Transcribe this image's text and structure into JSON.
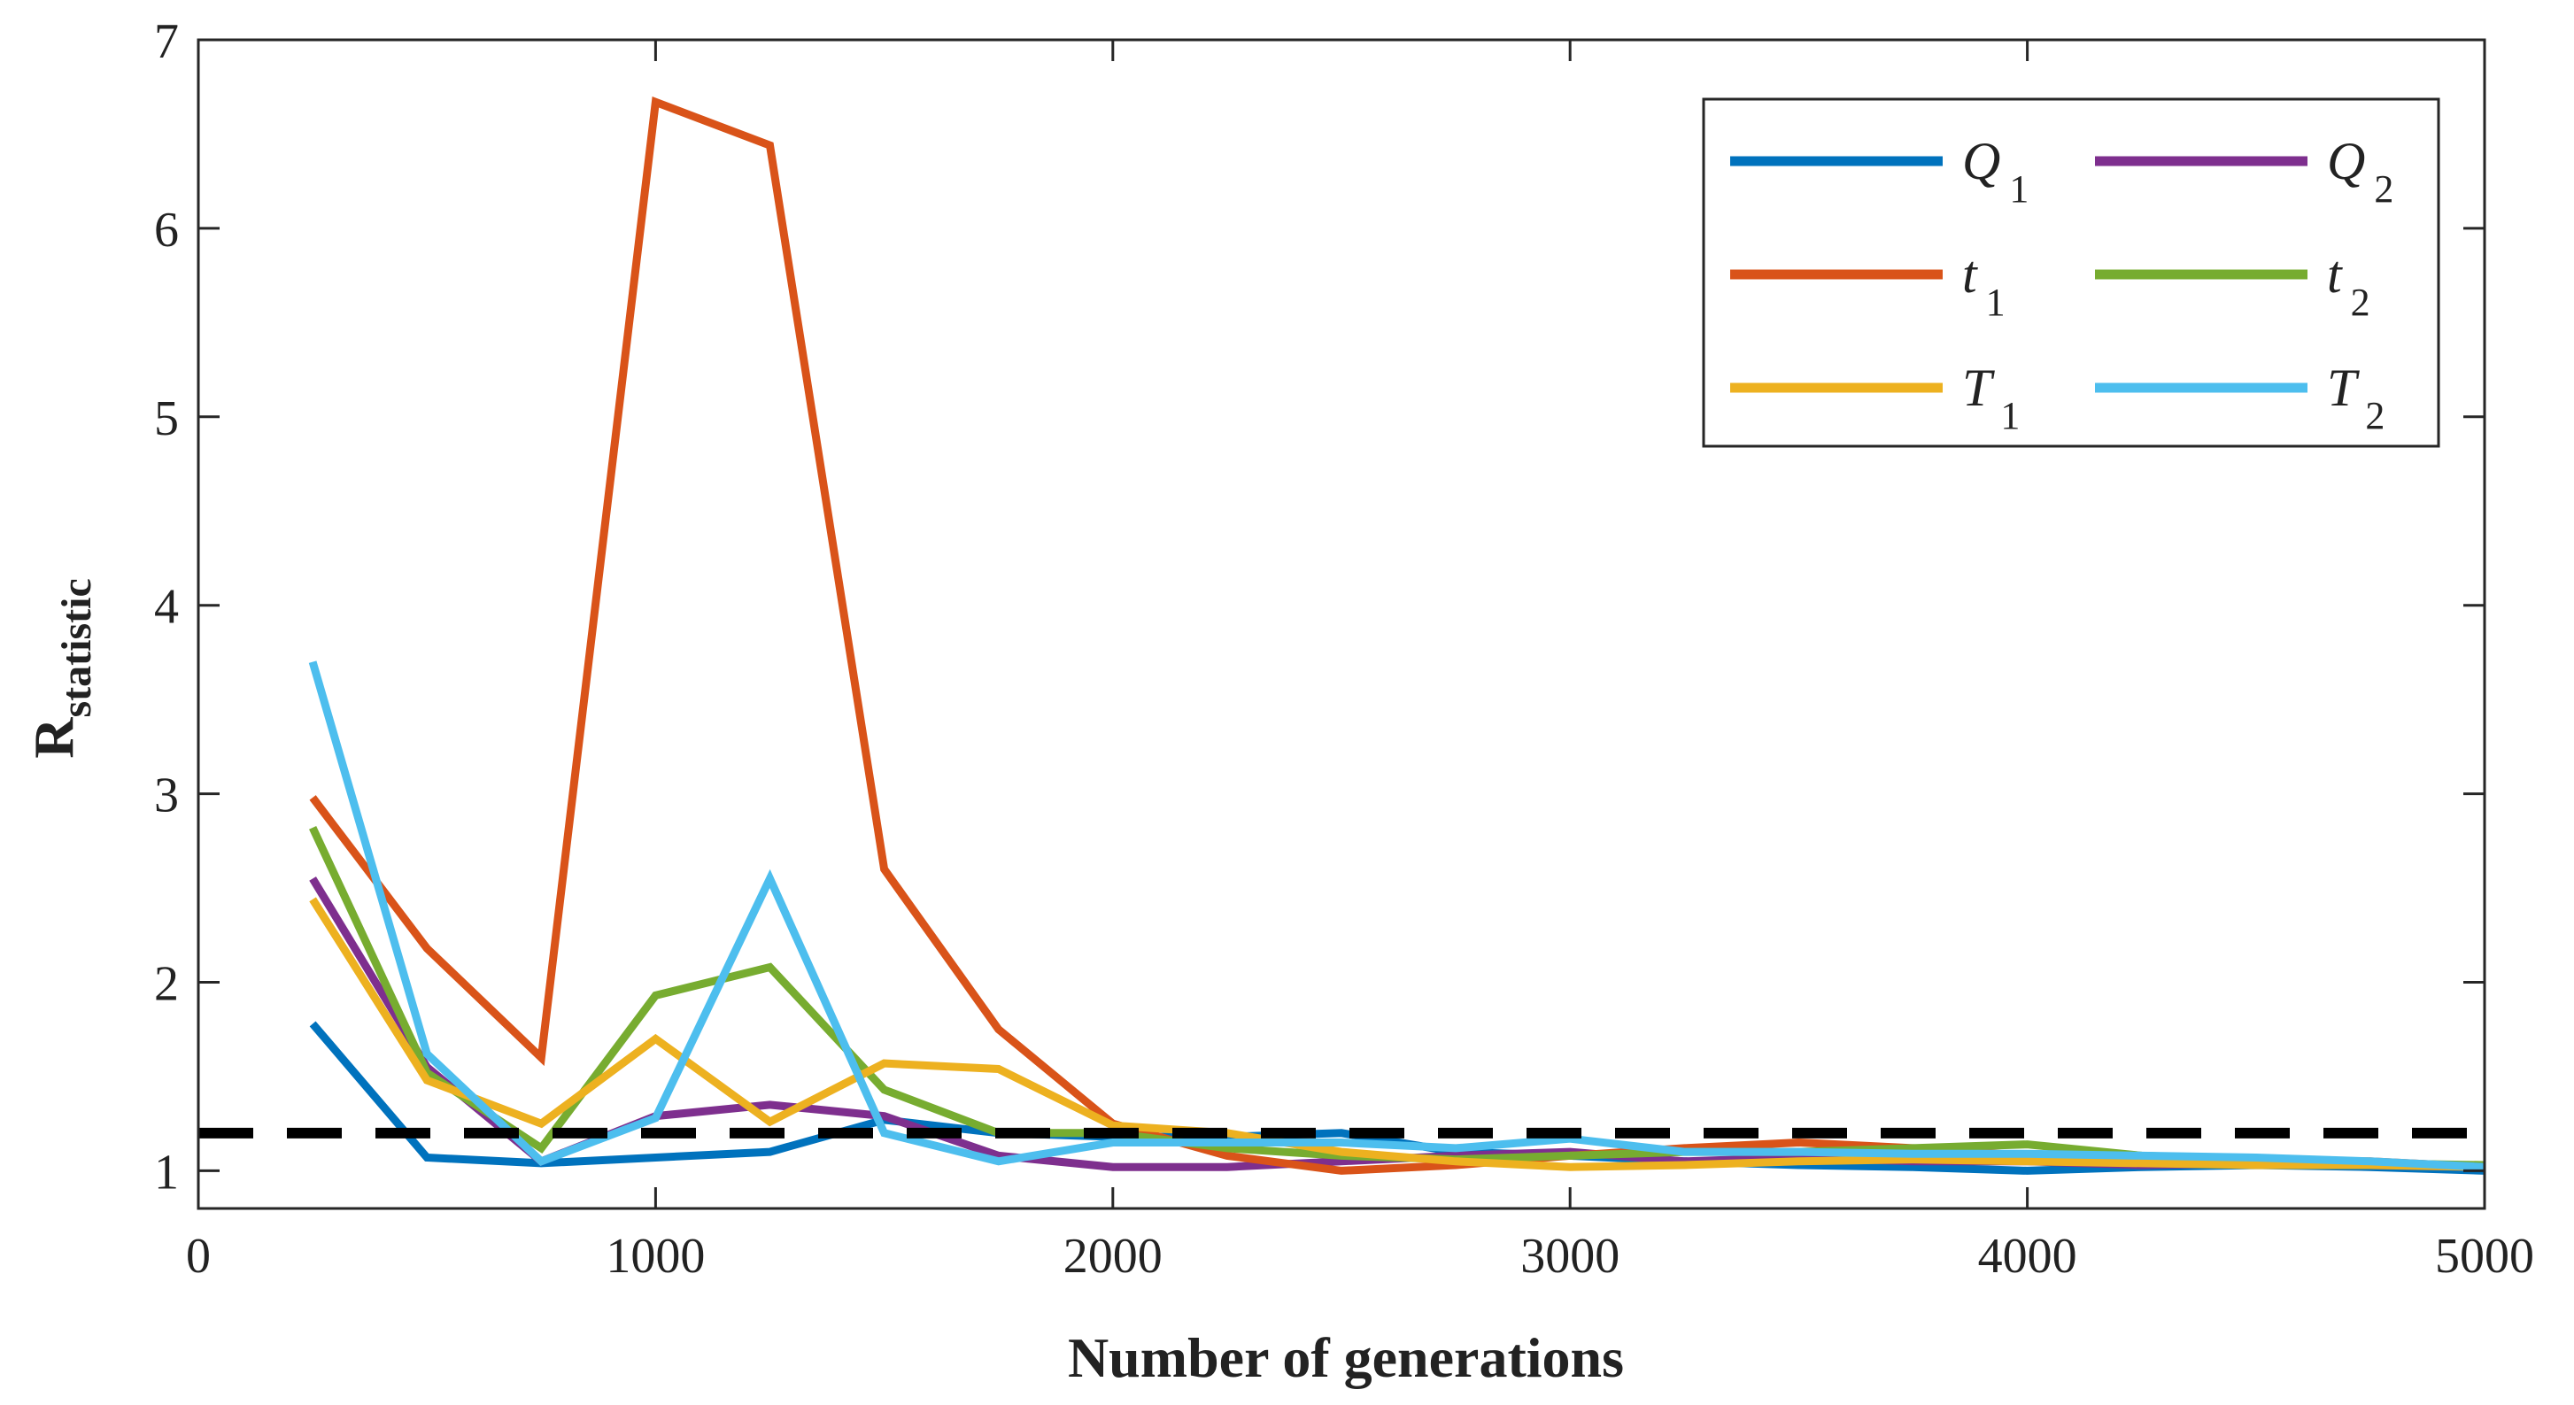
{
  "chart_data": {
    "type": "line",
    "xlabel": "Number of generations",
    "ylabel": "R",
    "ylabel_subscript": "statistic",
    "xlim": [
      0,
      5000
    ],
    "ylim": [
      0.8,
      7
    ],
    "xticks": [
      0,
      1000,
      2000,
      3000,
      4000,
      5000
    ],
    "yticks": [
      1,
      2,
      3,
      4,
      5,
      6,
      7
    ],
    "grid": false,
    "legend_position": "top-right",
    "x": [
      250,
      500,
      750,
      1000,
      1250,
      1500,
      1750,
      2000,
      2250,
      2500,
      2750,
      3000,
      3250,
      3500,
      3750,
      4000,
      4250,
      4500,
      4750,
      5000
    ],
    "series": [
      {
        "name": "Q",
        "subscript": "1",
        "color": "#0072BD",
        "values": [
          1.78,
          1.07,
          1.04,
          1.07,
          1.1,
          1.27,
          1.2,
          1.18,
          1.18,
          1.2,
          1.1,
          1.08,
          1.05,
          1.03,
          1.02,
          1.0,
          1.02,
          1.03,
          1.02,
          1.0
        ]
      },
      {
        "name": "Q",
        "subscript": "2",
        "color": "#7E2F8E",
        "values": [
          2.55,
          1.55,
          1.05,
          1.29,
          1.35,
          1.29,
          1.08,
          1.02,
          1.02,
          1.05,
          1.08,
          1.1,
          1.05,
          1.07,
          1.05,
          1.05,
          1.03,
          1.04,
          1.03,
          1.02
        ]
      },
      {
        "name": "t",
        "subscript": "1",
        "color": "#D95319",
        "values": [
          2.98,
          2.18,
          1.6,
          6.67,
          6.44,
          2.6,
          1.75,
          1.25,
          1.08,
          1.0,
          1.03,
          1.08,
          1.12,
          1.15,
          1.12,
          1.08,
          1.06,
          1.05,
          1.05,
          1.02
        ]
      },
      {
        "name": "t",
        "subscript": "2",
        "color": "#77AC30",
        "values": [
          2.82,
          1.52,
          1.12,
          1.93,
          2.08,
          1.43,
          1.2,
          1.2,
          1.12,
          1.08,
          1.06,
          1.08,
          1.1,
          1.1,
          1.12,
          1.14,
          1.08,
          1.06,
          1.04,
          1.03
        ]
      },
      {
        "name": "T",
        "subscript": "1",
        "color": "#EDB120",
        "values": [
          2.44,
          1.48,
          1.25,
          1.7,
          1.26,
          1.57,
          1.54,
          1.24,
          1.2,
          1.1,
          1.05,
          1.02,
          1.03,
          1.05,
          1.06,
          1.05,
          1.04,
          1.03,
          1.03,
          1.02
        ]
      },
      {
        "name": "T",
        "subscript": "2",
        "color": "#4DBEEE",
        "values": [
          3.7,
          1.62,
          1.05,
          1.28,
          2.55,
          1.2,
          1.05,
          1.15,
          1.15,
          1.15,
          1.12,
          1.17,
          1.1,
          1.1,
          1.09,
          1.09,
          1.08,
          1.07,
          1.05,
          1.02
        ]
      }
    ],
    "reference_line": {
      "y": 1.2,
      "style": "dashed",
      "color": "#000000"
    }
  }
}
